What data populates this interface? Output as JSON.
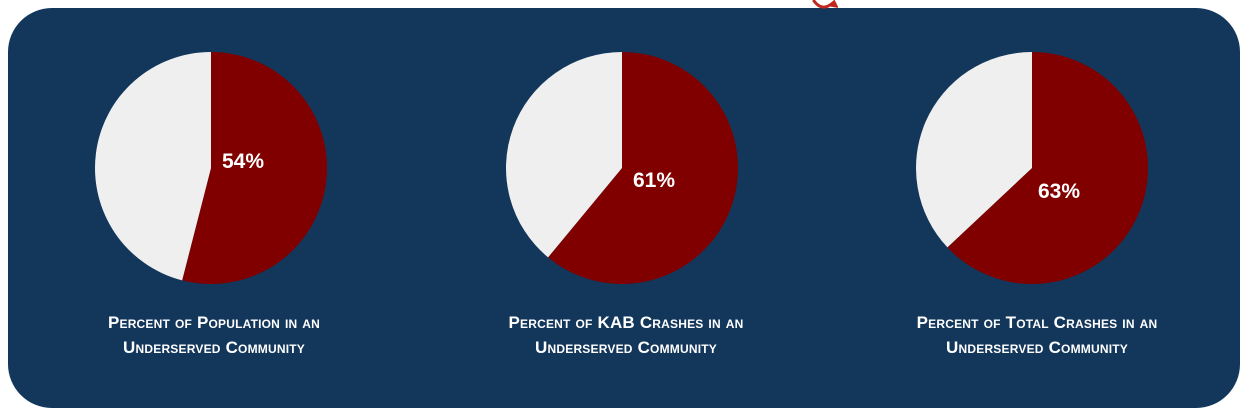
{
  "colors": {
    "panel": "#13365b",
    "highlight": "#800000",
    "remainder": "#efefef",
    "text": "#ffffff"
  },
  "chart_data": [
    {
      "type": "pie",
      "values": [
        54,
        46
      ],
      "label": "54%",
      "caption_line1": "Percent of Population in an",
      "caption_line2": "Underserved Community"
    },
    {
      "type": "pie",
      "values": [
        61,
        39
      ],
      "label": "61%",
      "caption_line1": "Percent of KAB Crashes in an",
      "caption_line2": "Underserved Community"
    },
    {
      "type": "pie",
      "values": [
        63,
        37
      ],
      "label": "63%",
      "caption_line1": "Percent of Total Crashes in an",
      "caption_line2": "Underserved Community"
    }
  ]
}
